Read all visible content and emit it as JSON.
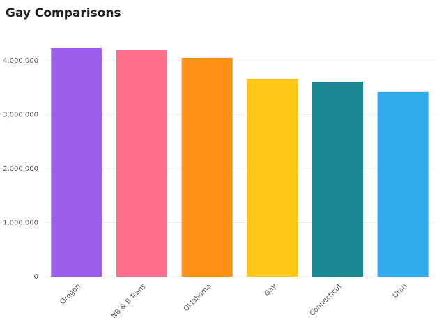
{
  "chart_data": {
    "type": "bar",
    "title": "Gay Comparisons",
    "categories": [
      "Oregon",
      "NB & B Trans",
      "Oklahoma",
      "Gay",
      "Connecticut",
      "Utah"
    ],
    "values": [
      4230000,
      4190000,
      4050000,
      3660000,
      3610000,
      3420000
    ],
    "colors": [
      "#9c5de8",
      "#fe6f8d",
      "#fe9115",
      "#ffc816",
      "#198892",
      "#31acec"
    ],
    "ylim": [
      0,
      4500000
    ],
    "yticks": [
      0,
      {
        "value": 1000000,
        "label": "1,000,000"
      },
      {
        "value": 2000000,
        "label": "2,000,000"
      },
      {
        "value": 3000000,
        "label": "3,000,000"
      },
      {
        "value": 4000000,
        "label": "4,000,000"
      }
    ],
    "grid": true
  }
}
